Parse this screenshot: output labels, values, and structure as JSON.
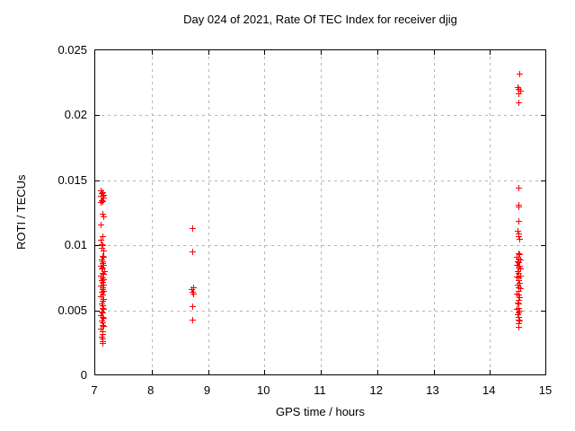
{
  "chart_data": {
    "type": "scatter",
    "title": "Day 024 of 2021, Rate Of TEC Index for receiver djig",
    "xlabel": "GPS time / hours",
    "ylabel": "ROTI / TECUs",
    "xlim": [
      7,
      15
    ],
    "ylim": [
      0,
      0.025
    ],
    "x_ticks": [
      7,
      8,
      9,
      10,
      11,
      12,
      13,
      14,
      15
    ],
    "x_tick_labels": [
      "7",
      "8",
      "9",
      "10",
      "11",
      "12",
      "13",
      "14",
      "15"
    ],
    "y_ticks": [
      0,
      0.005,
      0.01,
      0.015,
      0.02,
      0.025
    ],
    "y_tick_labels": [
      "0",
      "0.005",
      "0.01",
      "0.015",
      "0.02",
      "0.025"
    ],
    "grid": true,
    "legend_position": "none",
    "marker": "plus",
    "marker_color": "#ff0000",
    "axis_color": "#000000",
    "grid_color": "#b4b4b4",
    "series": [
      {
        "name": "ROTI",
        "points": [
          [
            7.1,
            0.0142
          ],
          [
            7.13,
            0.0141
          ],
          [
            7.11,
            0.014
          ],
          [
            7.15,
            0.0139
          ],
          [
            7.09,
            0.0138
          ],
          [
            7.12,
            0.0138
          ],
          [
            7.14,
            0.0137
          ],
          [
            7.11,
            0.0135
          ],
          [
            7.13,
            0.0134
          ],
          [
            7.1,
            0.0133
          ],
          [
            7.12,
            0.0124
          ],
          [
            7.14,
            0.0122
          ],
          [
            7.1,
            0.0116
          ],
          [
            7.12,
            0.0107
          ],
          [
            7.1,
            0.0104
          ],
          [
            7.11,
            0.0101
          ],
          [
            7.13,
            0.01
          ],
          [
            7.11,
            0.0098
          ],
          [
            7.14,
            0.0096
          ],
          [
            7.12,
            0.0092
          ],
          [
            7.15,
            0.0091
          ],
          [
            7.11,
            0.0089
          ],
          [
            7.13,
            0.0088
          ],
          [
            7.12,
            0.0086
          ],
          [
            7.14,
            0.0085
          ],
          [
            7.1,
            0.0084
          ],
          [
            7.13,
            0.0083
          ],
          [
            7.11,
            0.0082
          ],
          [
            7.16,
            0.008
          ],
          [
            7.12,
            0.0079
          ],
          [
            7.14,
            0.0078
          ],
          [
            7.1,
            0.0077
          ],
          [
            7.13,
            0.0075
          ],
          [
            7.15,
            0.0074
          ],
          [
            7.11,
            0.0073
          ],
          [
            7.12,
            0.0072
          ],
          [
            7.14,
            0.007
          ],
          [
            7.1,
            0.0069
          ],
          [
            7.13,
            0.0068
          ],
          [
            7.12,
            0.0066
          ],
          [
            7.15,
            0.0065
          ],
          [
            7.11,
            0.0064
          ],
          [
            7.13,
            0.0062
          ],
          [
            7.1,
            0.0061
          ],
          [
            7.14,
            0.0059
          ],
          [
            7.12,
            0.0057
          ],
          [
            7.11,
            0.0055
          ],
          [
            7.13,
            0.0054
          ],
          [
            7.12,
            0.0052
          ],
          [
            7.14,
            0.0051
          ],
          [
            7.11,
            0.0049
          ],
          [
            7.13,
            0.0048
          ],
          [
            7.1,
            0.0046
          ],
          [
            7.12,
            0.0045
          ],
          [
            7.15,
            0.0044
          ],
          [
            7.11,
            0.0042
          ],
          [
            7.13,
            0.0041
          ],
          [
            7.12,
            0.0039
          ],
          [
            7.14,
            0.0038
          ],
          [
            7.1,
            0.0036
          ],
          [
            7.12,
            0.0034
          ],
          [
            7.13,
            0.0032
          ],
          [
            7.11,
            0.003
          ],
          [
            7.12,
            0.0028
          ],
          [
            7.13,
            0.0026
          ],
          [
            7.12,
            0.0025
          ],
          [
            8.72,
            0.0113
          ],
          [
            8.72,
            0.0095
          ],
          [
            8.73,
            0.0068
          ],
          [
            8.71,
            0.0066
          ],
          [
            8.72,
            0.0064
          ],
          [
            8.73,
            0.0063
          ],
          [
            8.72,
            0.0053
          ],
          [
            8.72,
            0.0043
          ],
          [
            14.52,
            0.0232
          ],
          [
            14.49,
            0.0222
          ],
          [
            14.51,
            0.022
          ],
          [
            14.53,
            0.0219
          ],
          [
            14.5,
            0.0217
          ],
          [
            14.5,
            0.021
          ],
          [
            14.5,
            0.0144
          ],
          [
            14.5,
            0.0131
          ],
          [
            14.51,
            0.013
          ],
          [
            14.5,
            0.0119
          ],
          [
            14.49,
            0.0111
          ],
          [
            14.51,
            0.0109
          ],
          [
            14.5,
            0.0107
          ],
          [
            14.52,
            0.0105
          ],
          [
            14.5,
            0.0094
          ],
          [
            14.52,
            0.0093
          ],
          [
            14.48,
            0.0091
          ],
          [
            14.51,
            0.009
          ],
          [
            14.53,
            0.0089
          ],
          [
            14.49,
            0.0088
          ],
          [
            14.51,
            0.0087
          ],
          [
            14.47,
            0.0085
          ],
          [
            14.52,
            0.0084
          ],
          [
            14.5,
            0.0083
          ],
          [
            14.54,
            0.0082
          ],
          [
            14.49,
            0.008
          ],
          [
            14.51,
            0.0079
          ],
          [
            14.53,
            0.0077
          ],
          [
            14.48,
            0.0076
          ],
          [
            14.51,
            0.0075
          ],
          [
            14.5,
            0.0073
          ],
          [
            14.52,
            0.0071
          ],
          [
            14.49,
            0.007
          ],
          [
            14.51,
            0.0068
          ],
          [
            14.53,
            0.0067
          ],
          [
            14.5,
            0.0065
          ],
          [
            14.48,
            0.0063
          ],
          [
            14.51,
            0.0062
          ],
          [
            14.52,
            0.006
          ],
          [
            14.5,
            0.0058
          ],
          [
            14.49,
            0.0056
          ],
          [
            14.51,
            0.0055
          ],
          [
            14.51,
            0.0052
          ],
          [
            14.48,
            0.0051
          ],
          [
            14.52,
            0.005
          ],
          [
            14.5,
            0.0048
          ],
          [
            14.49,
            0.0047
          ],
          [
            14.51,
            0.0045
          ],
          [
            14.5,
            0.0043
          ],
          [
            14.52,
            0.0042
          ],
          [
            14.5,
            0.004
          ],
          [
            14.51,
            0.0037
          ]
        ]
      }
    ]
  }
}
